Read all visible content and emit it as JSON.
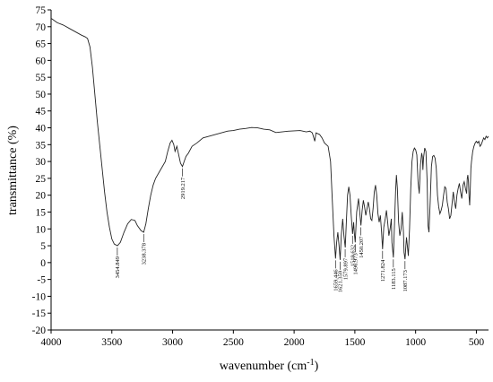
{
  "chart_data": {
    "type": "line",
    "title": "",
    "xlabel": "wavenumber (cm",
    "xlabel_sup": "-1",
    "xlabel_suffix": ")",
    "ylabel": "transmittance (%)",
    "xlim": [
      4000,
      400
    ],
    "ylim": [
      -20,
      75
    ],
    "x_reversed": true,
    "grid": false,
    "x_ticks": [
      4000,
      3500,
      3000,
      2500,
      2000,
      1500,
      1000,
      500
    ],
    "y_ticks": [
      -20,
      -15,
      -10,
      -5,
      0,
      5,
      10,
      15,
      20,
      25,
      30,
      35,
      40,
      45,
      50,
      55,
      60,
      65,
      70,
      75
    ],
    "colors": {
      "line": "#222222"
    },
    "series": [
      {
        "points": [
          [
            4000,
            72.5
          ],
          [
            3950,
            71.2
          ],
          [
            3900,
            70.5
          ],
          [
            3850,
            69.5
          ],
          [
            3800,
            68.5
          ],
          [
            3750,
            67.5
          ],
          [
            3720,
            67.0
          ],
          [
            3700,
            66.5
          ],
          [
            3680,
            64
          ],
          [
            3660,
            58
          ],
          [
            3640,
            50
          ],
          [
            3620,
            42
          ],
          [
            3600,
            35
          ],
          [
            3580,
            28
          ],
          [
            3560,
            21
          ],
          [
            3540,
            15
          ],
          [
            3520,
            10.5
          ],
          [
            3500,
            7
          ],
          [
            3480,
            5.5
          ],
          [
            3454,
            5.0
          ],
          [
            3430,
            6
          ],
          [
            3400,
            9
          ],
          [
            3370,
            11.5
          ],
          [
            3340,
            12.8
          ],
          [
            3310,
            12.5
          ],
          [
            3290,
            11
          ],
          [
            3260,
            9.5
          ],
          [
            3238,
            9.0
          ],
          [
            3220,
            11.5
          ],
          [
            3200,
            16
          ],
          [
            3180,
            20
          ],
          [
            3160,
            23
          ],
          [
            3140,
            25
          ],
          [
            3100,
            27.5
          ],
          [
            3060,
            30
          ],
          [
            3040,
            33
          ],
          [
            3020,
            35.5
          ],
          [
            3005,
            36.3
          ],
          [
            2990,
            35
          ],
          [
            2980,
            33
          ],
          [
            2965,
            34.5
          ],
          [
            2950,
            32
          ],
          [
            2935,
            29.5
          ],
          [
            2919,
            28.5
          ],
          [
            2905,
            30
          ],
          [
            2890,
            31.5
          ],
          [
            2870,
            32.5
          ],
          [
            2840,
            34.5
          ],
          [
            2800,
            35.5
          ],
          [
            2750,
            37
          ],
          [
            2700,
            37.5
          ],
          [
            2650,
            38
          ],
          [
            2600,
            38.5
          ],
          [
            2550,
            39
          ],
          [
            2500,
            39.2
          ],
          [
            2450,
            39.6
          ],
          [
            2400,
            39.8
          ],
          [
            2350,
            40.1
          ],
          [
            2300,
            40.0
          ],
          [
            2250,
            39.6
          ],
          [
            2200,
            39.4
          ],
          [
            2150,
            38.6
          ],
          [
            2100,
            38.8
          ],
          [
            2050,
            39.0
          ],
          [
            2000,
            39.1
          ],
          [
            1950,
            39.2
          ],
          [
            1900,
            38.8
          ],
          [
            1870,
            39.0
          ],
          [
            1850,
            38.5
          ],
          [
            1830,
            36.0
          ],
          [
            1820,
            38.5
          ],
          [
            1790,
            38.0
          ],
          [
            1770,
            37.0
          ],
          [
            1750,
            35.5
          ],
          [
            1720,
            34.5
          ],
          [
            1700,
            30.0
          ],
          [
            1685,
            18.0
          ],
          [
            1672,
            8.0
          ],
          [
            1659,
            1.2
          ],
          [
            1650,
            6.0
          ],
          [
            1640,
            9.0
          ],
          [
            1630,
            5.0
          ],
          [
            1621,
            0.8
          ],
          [
            1612,
            8.0
          ],
          [
            1600,
            13.0
          ],
          [
            1590,
            8.0
          ],
          [
            1579,
            4.5
          ],
          [
            1570,
            12.0
          ],
          [
            1560,
            20.0
          ],
          [
            1550,
            22.5
          ],
          [
            1540,
            20.0
          ],
          [
            1530,
            14.0
          ],
          [
            1519,
            8.5
          ],
          [
            1510,
            12.0
          ],
          [
            1505,
            9.0
          ],
          [
            1497,
            6.0
          ],
          [
            1485,
            15.0
          ],
          [
            1470,
            19.0
          ],
          [
            1460,
            15.0
          ],
          [
            1450,
            11.0
          ],
          [
            1440,
            15.5
          ],
          [
            1430,
            18.5
          ],
          [
            1420,
            16.5
          ],
          [
            1410,
            14.0
          ],
          [
            1400,
            16.0
          ],
          [
            1390,
            18.0
          ],
          [
            1380,
            16.0
          ],
          [
            1370,
            13.0
          ],
          [
            1360,
            12.5
          ],
          [
            1350,
            16.0
          ],
          [
            1340,
            21.0
          ],
          [
            1330,
            23.0
          ],
          [
            1320,
            20.0
          ],
          [
            1310,
            14.5
          ],
          [
            1300,
            12.0
          ],
          [
            1290,
            14.0
          ],
          [
            1280,
            9.0
          ],
          [
            1272,
            4.0
          ],
          [
            1262,
            10.5
          ],
          [
            1250,
            13.0
          ],
          [
            1240,
            15.5
          ],
          [
            1230,
            12.0
          ],
          [
            1220,
            8.0
          ],
          [
            1210,
            10.0
          ],
          [
            1200,
            13.0
          ],
          [
            1195,
            6.0
          ],
          [
            1183,
            1.5
          ],
          [
            1175,
            10.0
          ],
          [
            1165,
            21.0
          ],
          [
            1158,
            26.0
          ],
          [
            1150,
            22.0
          ],
          [
            1140,
            12.0
          ],
          [
            1130,
            8.0
          ],
          [
            1120,
            10.0
          ],
          [
            1110,
            15.0
          ],
          [
            1100,
            9.0
          ],
          [
            1095,
            3.0
          ],
          [
            1087,
            1.0
          ],
          [
            1080,
            5.0
          ],
          [
            1075,
            7.5
          ],
          [
            1068,
            5.0
          ],
          [
            1060,
            2.0
          ],
          [
            1050,
            10.0
          ],
          [
            1040,
            22.0
          ],
          [
            1030,
            30.0
          ],
          [
            1020,
            33.0
          ],
          [
            1010,
            34.0
          ],
          [
            1000,
            33.5
          ],
          [
            990,
            32.0
          ],
          [
            980,
            24.0
          ],
          [
            970,
            20.5
          ],
          [
            960,
            29.0
          ],
          [
            950,
            32.5
          ],
          [
            945,
            31.5
          ],
          [
            940,
            27.5
          ],
          [
            935,
            31.0
          ],
          [
            925,
            34.0
          ],
          [
            915,
            33.0
          ],
          [
            905,
            24.0
          ],
          [
            898,
            11.0
          ],
          [
            890,
            9.0
          ],
          [
            880,
            18.0
          ],
          [
            870,
            28.5
          ],
          [
            860,
            31.5
          ],
          [
            850,
            31.8
          ],
          [
            840,
            31.0
          ],
          [
            830,
            28.0
          ],
          [
            820,
            20.0
          ],
          [
            810,
            16.5
          ],
          [
            800,
            14.5
          ],
          [
            790,
            15.5
          ],
          [
            780,
            17.0
          ],
          [
            770,
            20.0
          ],
          [
            760,
            22.5
          ],
          [
            750,
            22.0
          ],
          [
            740,
            18.0
          ],
          [
            730,
            16.0
          ],
          [
            720,
            13.0
          ],
          [
            710,
            14.0
          ],
          [
            700,
            17.5
          ],
          [
            690,
            21.0
          ],
          [
            680,
            18.0
          ],
          [
            670,
            16.0
          ],
          [
            660,
            20.0
          ],
          [
            650,
            22.0
          ],
          [
            640,
            23.5
          ],
          [
            630,
            21.0
          ],
          [
            620,
            19.0
          ],
          [
            610,
            23.0
          ],
          [
            600,
            24.0
          ],
          [
            590,
            22.0
          ],
          [
            580,
            20.5
          ],
          [
            575,
            25.0
          ],
          [
            570,
            26.0
          ],
          [
            565,
            24.0
          ],
          [
            560,
            19.5
          ],
          [
            555,
            17.0
          ],
          [
            550,
            22.0
          ],
          [
            545,
            28.0
          ],
          [
            540,
            30.0
          ],
          [
            530,
            33.0
          ],
          [
            520,
            34.5
          ],
          [
            510,
            35.5
          ],
          [
            500,
            36.0
          ],
          [
            490,
            35.5
          ],
          [
            480,
            36.0
          ],
          [
            470,
            34.5
          ],
          [
            460,
            35.0
          ],
          [
            450,
            36.0
          ],
          [
            440,
            37.0
          ],
          [
            430,
            36.5
          ],
          [
            420,
            37.5
          ],
          [
            410,
            37.0
          ],
          [
            400,
            37.5
          ]
        ]
      }
    ],
    "peak_labels": [
      {
        "x": 3454.849,
        "y": 5.0,
        "text": "3454.849"
      },
      {
        "x": 3238.378,
        "y": 9.0,
        "text": "3238.378"
      },
      {
        "x": 2919.217,
        "y": 28.5,
        "text": "2919.217"
      },
      {
        "x": 1659.446,
        "y": 1.2,
        "text": "1659.446"
      },
      {
        "x": 1621.359,
        "y": 0.8,
        "text": "1621.359"
      },
      {
        "x": 1579.897,
        "y": 4.5,
        "text": "1579.897"
      },
      {
        "x": 1519.632,
        "y": 8.5,
        "text": "1519.632"
      },
      {
        "x": 1496.973,
        "y": 6.0,
        "text": "1496.973"
      },
      {
        "x": 1450.207,
        "y": 11.0,
        "text": "1450.207"
      },
      {
        "x": 1271.824,
        "y": 4.0,
        "text": "1271.824"
      },
      {
        "x": 1183.115,
        "y": 1.5,
        "text": "1183.115"
      },
      {
        "x": 1087.173,
        "y": 1.0,
        "text": "1087.173"
      }
    ]
  }
}
